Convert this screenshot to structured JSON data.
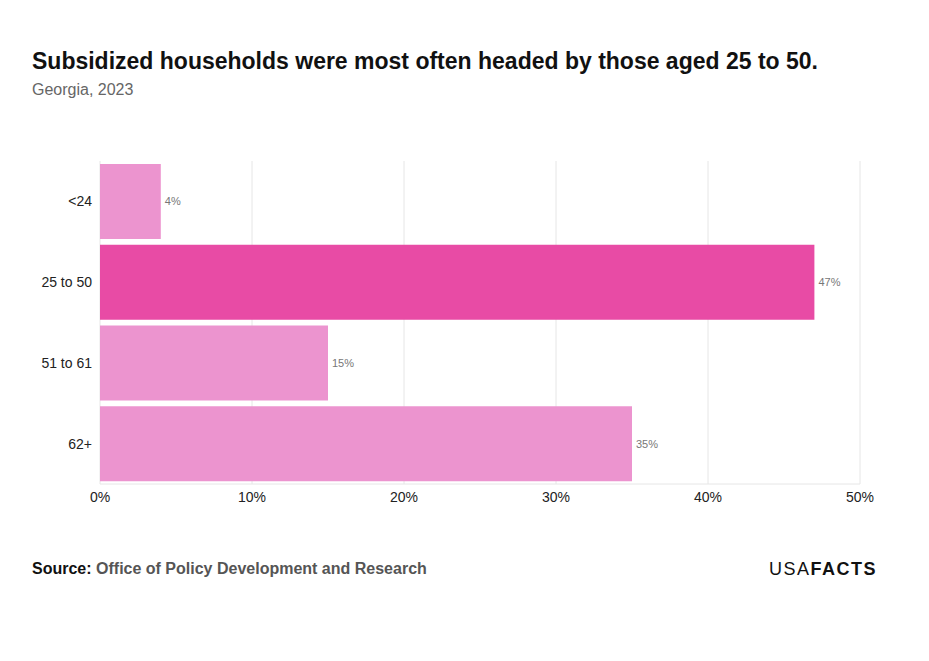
{
  "chart_data": {
    "type": "bar",
    "orientation": "horizontal",
    "title": "Subsidized households were most often headed by those aged 25 to 50.",
    "subtitle": "Georgia, 2023",
    "source_label": "Source:",
    "source": "Office of Policy Development and Research",
    "logo": [
      "USA",
      "FACTS"
    ],
    "categories": [
      "<24",
      "25 to 50",
      "51 to 61",
      "62+"
    ],
    "values": [
      4,
      47,
      15,
      35
    ],
    "value_labels": [
      "4%",
      "47%",
      "15%",
      "35%"
    ],
    "colors": [
      "#ec94cf",
      "#e84ba5",
      "#ec94cf",
      "#ec94cf"
    ],
    "xlim": [
      0,
      50
    ],
    "xticks": [
      {
        "value": 0,
        "label": "0%"
      },
      {
        "value": 10,
        "label": "10%"
      },
      {
        "value": 20,
        "label": "20%"
      },
      {
        "value": 30,
        "label": "30%"
      },
      {
        "value": 40,
        "label": "40%"
      },
      {
        "value": 50,
        "label": "50%"
      }
    ],
    "grid": true,
    "data_labels": true
  }
}
